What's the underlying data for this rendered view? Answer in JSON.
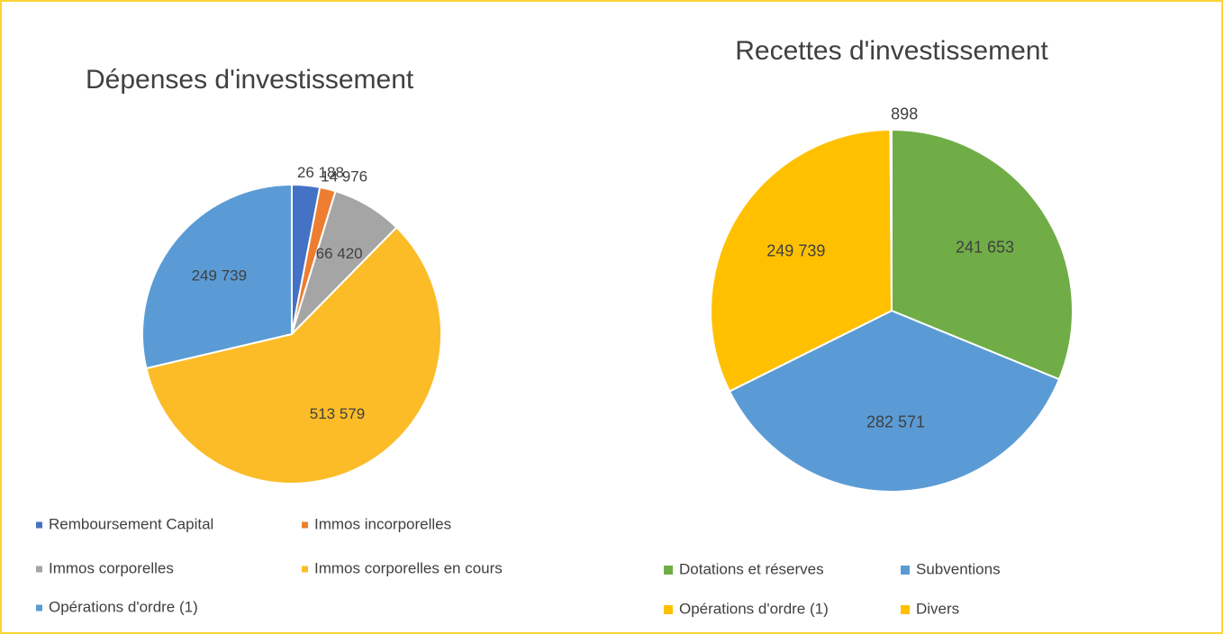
{
  "chart_data": [
    {
      "type": "pie",
      "title": "Dépenses d'investissement",
      "categories": [
        "Remboursement Capital",
        "Immos incorporelles",
        "Immos corporelles",
        "Immos corporelles en cours",
        "Opérations d'ordre (1)"
      ],
      "values": [
        26188,
        14976,
        66420,
        513579,
        249739
      ],
      "value_labels": [
        "26 188",
        "14 976",
        "66 420",
        "513 579",
        "249 739"
      ],
      "colors": [
        "#4472c4",
        "#ed7d31",
        "#a5a5a5",
        "#fbbc27",
        "#5b9bd5"
      ]
    },
    {
      "type": "pie",
      "title": "Recettes d'investissement",
      "categories": [
        "Dotations et réserves",
        "Subventions",
        "Opérations d'ordre (1)",
        "Divers"
      ],
      "values": [
        241653,
        282571,
        249739,
        898
      ],
      "value_labels": [
        "241 653",
        "282 571",
        "249 739",
        "898"
      ],
      "colors": [
        "#70ad47",
        "#5b9bd5",
        "#ffc000",
        "#ffc000"
      ]
    }
  ]
}
